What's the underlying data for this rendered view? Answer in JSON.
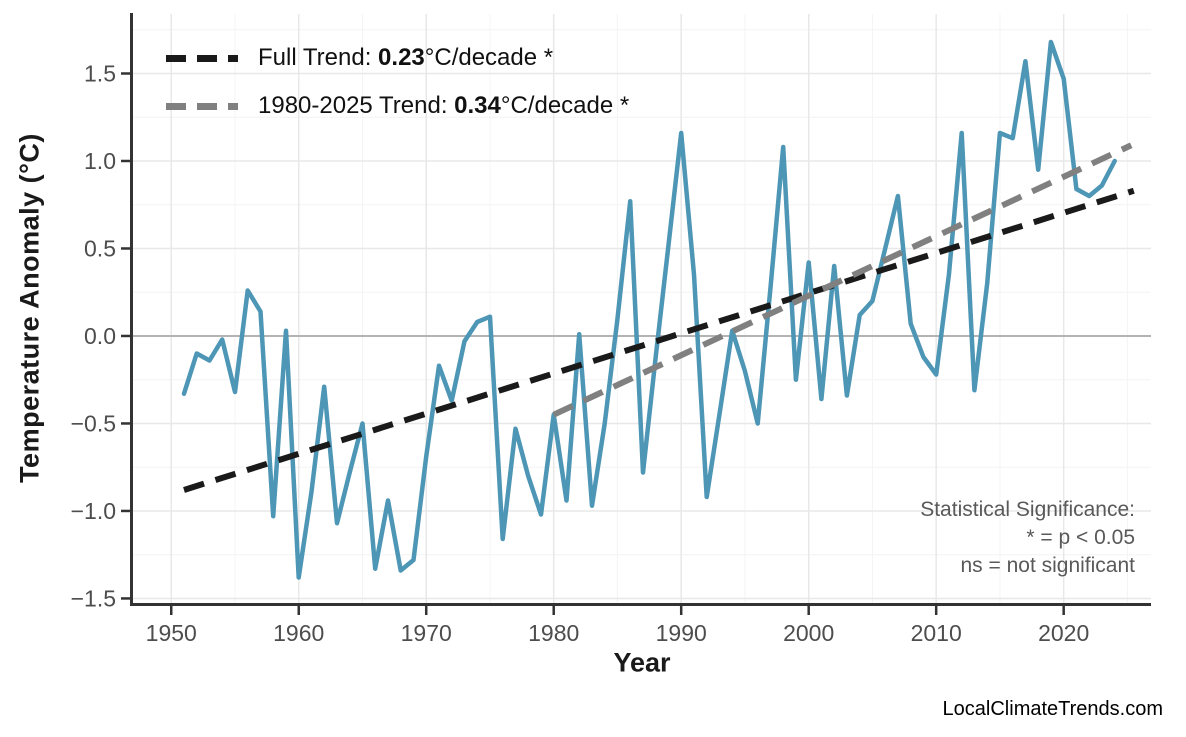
{
  "page": {
    "watermark": "LocalClimateTrends.com"
  },
  "chart_data": {
    "type": "line",
    "title": "",
    "xlabel": "Year",
    "ylabel": "Temperature Anomaly (°C)",
    "xlim": [
      1947,
      2026.85
    ],
    "ylim": [
      -1.526,
      1.84
    ],
    "grid": true,
    "legend_position": "top-left",
    "x_axis": {
      "ticks": [
        1950,
        1960,
        1970,
        1980,
        1990,
        2000,
        2010,
        2020
      ],
      "labels": [
        "1950",
        "1960",
        "1970",
        "1980",
        "1990",
        "2000",
        "2010",
        "2020"
      ]
    },
    "y_axis": {
      "ticks": [
        1.5,
        1.0,
        0.5,
        0.0,
        -0.5,
        -1.0,
        -1.5
      ],
      "labels": [
        "1.5",
        "1.0",
        "0.5",
        "0.0",
        "−0.5",
        "−1.0",
        "−1.5"
      ]
    },
    "series": [
      {
        "name": "annual-temperature-anomaly",
        "color": "#4e96b5",
        "x_start": 1951,
        "x_step": 1,
        "values": [
          -0.33,
          -0.1,
          -0.14,
          -0.02,
          -0.32,
          0.26,
          0.14,
          -1.03,
          0.03,
          -1.38,
          -0.89,
          -0.29,
          -1.07,
          -0.78,
          -0.5,
          -1.33,
          -0.94,
          -1.34,
          -1.28,
          -0.69,
          -0.17,
          -0.37,
          -0.03,
          0.08,
          0.11,
          -1.16,
          -0.53,
          -0.8,
          -1.02,
          -0.45,
          -0.94,
          0.01,
          -0.97,
          -0.5,
          0.1,
          0.77,
          -0.78,
          -0.12,
          0.52,
          1.16,
          0.35,
          -0.92,
          -0.45,
          0.03,
          -0.2,
          -0.5,
          0.27,
          1.08,
          -0.25,
          0.42,
          -0.36,
          0.4,
          -0.34,
          0.12,
          0.2,
          0.5,
          0.8,
          0.07,
          -0.12,
          -0.22,
          0.35,
          1.16,
          -0.31,
          0.3,
          1.16,
          1.13,
          1.57,
          0.95,
          1.68,
          1.47,
          0.84,
          0.8,
          0.86,
          1.0
        ]
      }
    ],
    "trend_lines": [
      {
        "name": "full-trend",
        "color": "#1a1a1a",
        "x1": 1951,
        "y1": -0.88,
        "x2": 2025.5,
        "y2": 0.83,
        "slope_per_decade": 0.23,
        "significant": true,
        "label_prefix": "Full Trend: ",
        "label_value": "0.23",
        "label_suffix": "°C/decade *"
      },
      {
        "name": "recent-trend",
        "color": "#808080",
        "x1": 1980,
        "y1": -0.45,
        "x2": 2025.3,
        "y2": 1.09,
        "slope_per_decade": 0.34,
        "significant": true,
        "label_prefix": "1980-2025 Trend: ",
        "label_value": "0.34",
        "label_suffix": "°C/decade *"
      }
    ],
    "annotations": {
      "line1": "Statistical Significance:",
      "line2": "* = p < 0.05",
      "line3": "ns = not significant"
    },
    "colors": {
      "series_blue": "#4e96b5",
      "full_trend_black": "#1a1a1a",
      "recent_trend_gray": "#808080",
      "zero_line": "#b3b3b3",
      "major_grid": "#e8e8e8",
      "minor_grid": "#f4f4f4",
      "axis_spine": "#333333",
      "tick_label": "#4d4d4d",
      "annotation_gray": "#595959"
    }
  }
}
